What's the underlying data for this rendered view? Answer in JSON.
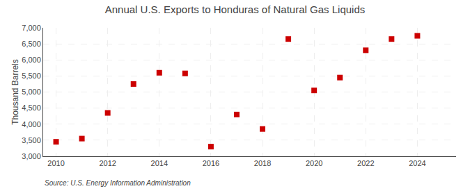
{
  "chart_data": {
    "type": "scatter",
    "title": "Annual U.S. Exports to Honduras of Natural Gas Liquids",
    "ylabel": "Thousand Barrels",
    "source": "Source: U.S. Energy Information Administration",
    "x": [
      2010,
      2011,
      2012,
      2013,
      2014,
      2015,
      2016,
      2017,
      2018,
      2019,
      2020,
      2021,
      2022,
      2023,
      2024
    ],
    "values": [
      3450,
      3550,
      4350,
      5250,
      5600,
      5580,
      3300,
      4300,
      3850,
      6650,
      5050,
      5450,
      6300,
      6650,
      6750
    ],
    "color": "#cc0000",
    "marker": "square",
    "xlim": [
      2009.5,
      2025.5
    ],
    "ylim": [
      3000,
      7000
    ],
    "xticks": [
      2010,
      2012,
      2014,
      2016,
      2018,
      2020,
      2022,
      2024
    ],
    "yticks": [
      {
        "value": 3000,
        "label": "3,000"
      },
      {
        "value": 3500,
        "label": "3,500"
      },
      {
        "value": 4000,
        "label": "4,000"
      },
      {
        "value": 4500,
        "label": "4,500"
      },
      {
        "value": 5000,
        "label": "5,000"
      },
      {
        "value": 5500,
        "label": "5,500"
      },
      {
        "value": 6000,
        "label": "6,000"
      },
      {
        "value": 6500,
        "label": "6,500"
      },
      {
        "value": 7000,
        "label": "7,000"
      }
    ],
    "grid": true
  }
}
